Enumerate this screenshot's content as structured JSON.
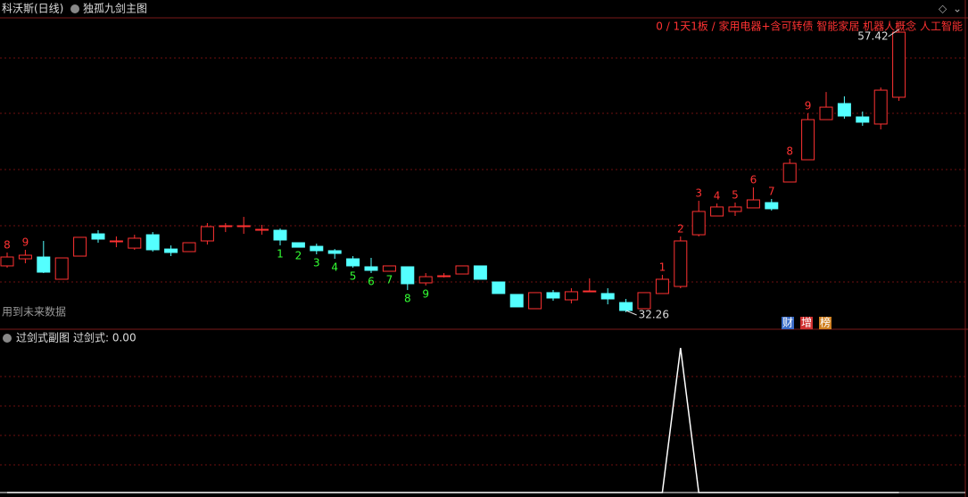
{
  "header": {
    "stock": "科沃斯(日线)",
    "main_chart_name": "独孤九剑主图",
    "concepts": "0 / 1天1板 / 家用电器+含可转债 智能家居 机器人概念 人工智能",
    "note": "用到未来数据",
    "badges": [
      "财",
      "增",
      "榜"
    ],
    "sub_chart_name": "过剑式副图",
    "sub_current": "过剑式: 0.00"
  },
  "chart_data": [
    {
      "type": "candlestick",
      "up_color": "#ff3232",
      "down_color": "#54ffff",
      "ylim": [
        31.07,
        58.85
      ],
      "max_label": 57.42,
      "min_label": 32.26,
      "open": [
        36.39,
        37.02,
        37.18,
        35.2,
        37.26,
        39.24,
        38.61,
        37.97,
        39.16,
        37.89,
        37.66,
        38.61,
        39.96,
        39.96,
        39.64,
        39.56,
        38.45,
        38.13,
        37.74,
        37.02,
        36.31,
        35.91,
        36.31,
        34.88,
        35.51,
        35.67,
        36.39,
        34.96,
        33.85,
        32.58,
        34.01,
        33.37,
        34.16,
        33.93,
        33.13,
        32.58,
        33.93,
        34.56,
        39.16,
        40.83,
        41.23,
        41.55,
        42.02,
        43.85,
        45.83,
        49.4,
        50.83,
        49.64,
        49.01,
        51.39
      ],
      "high": [
        37.58,
        37.82,
        38.61,
        37.1,
        38.93,
        39.56,
        39.01,
        39.16,
        39.4,
        38.21,
        38.45,
        40.2,
        40.2,
        40.75,
        40.04,
        39.72,
        38.45,
        38.37,
        37.89,
        37.26,
        37.1,
        36.39,
        36.31,
        35.75,
        35.75,
        36.39,
        36.39,
        34.96,
        33.85,
        34.01,
        34.24,
        34.4,
        35.28,
        34.4,
        33.45,
        34.01,
        35.59,
        39.01,
        42.18,
        41.94,
        42.02,
        43.37,
        42.34,
        45.91,
        49.96,
        51.86,
        51.47,
        50.12,
        52.26,
        57.42
      ],
      "low": [
        36.23,
        36.62,
        35.75,
        35.2,
        37.26,
        38.45,
        38.05,
        37.82,
        37.66,
        37.26,
        37.66,
        38.29,
        39.4,
        39.24,
        39.16,
        38.21,
        38.05,
        37.42,
        37.02,
        36.23,
        35.75,
        35.91,
        34.24,
        34.64,
        35.36,
        35.67,
        35.2,
        33.93,
        32.74,
        32.58,
        33.29,
        33.05,
        34.09,
        32.97,
        32.26,
        32.58,
        33.93,
        34.4,
        39.01,
        40.83,
        40.83,
        41.55,
        41.31,
        43.85,
        45.83,
        49.4,
        49.48,
        48.85,
        48.53,
        51.07
      ],
      "close": [
        37.18,
        37.34,
        35.83,
        37.1,
        38.93,
        38.77,
        38.61,
        38.85,
        37.82,
        37.58,
        38.45,
        39.88,
        39.96,
        39.96,
        39.64,
        38.69,
        38.05,
        37.74,
        37.5,
        36.39,
        35.99,
        36.39,
        34.8,
        35.43,
        35.51,
        36.39,
        35.2,
        33.93,
        32.74,
        34.01,
        33.53,
        34.09,
        34.16,
        33.45,
        32.42,
        34.01,
        35.2,
        38.61,
        41.23,
        41.63,
        41.63,
        42.26,
        41.47,
        45.51,
        49.4,
        50.51,
        49.72,
        49.17,
        52.02,
        57.18
      ],
      "sell_counts": [
        "8",
        "9",
        null,
        null,
        null,
        null,
        null,
        null,
        null,
        null,
        null,
        null,
        null,
        null,
        null,
        null,
        null,
        null,
        null,
        null,
        null,
        null,
        null,
        null,
        null,
        null,
        null,
        null,
        null,
        null,
        null,
        null,
        null,
        null,
        null,
        null,
        "1",
        "2",
        "3",
        "4",
        "5",
        "6",
        "7",
        "8",
        "9",
        null,
        null,
        null,
        null,
        null
      ],
      "buy_counts": [
        null,
        null,
        null,
        null,
        null,
        null,
        null,
        null,
        null,
        null,
        null,
        null,
        null,
        null,
        null,
        "1",
        "2",
        "3",
        "4",
        "5",
        "6",
        "7",
        "8",
        "9",
        null,
        null,
        null,
        null,
        null,
        null,
        null,
        null,
        null,
        null,
        null,
        null,
        null,
        null,
        null,
        null,
        null,
        null,
        null,
        null,
        null,
        null,
        null,
        null,
        null,
        null
      ]
    },
    {
      "type": "line",
      "color": "#ffffff",
      "ylim": [
        0,
        1
      ],
      "values": [
        0,
        0,
        0,
        0,
        0,
        0,
        0,
        0,
        0,
        0,
        0,
        0,
        0,
        0,
        0,
        0,
        0,
        0,
        0,
        0,
        0,
        0,
        0,
        0,
        0,
        0,
        0,
        0,
        0,
        0,
        0,
        0,
        0,
        0,
        0,
        0,
        0,
        1,
        0,
        0,
        0,
        0,
        0,
        0,
        0,
        0,
        0,
        0,
        0,
        0
      ]
    }
  ]
}
